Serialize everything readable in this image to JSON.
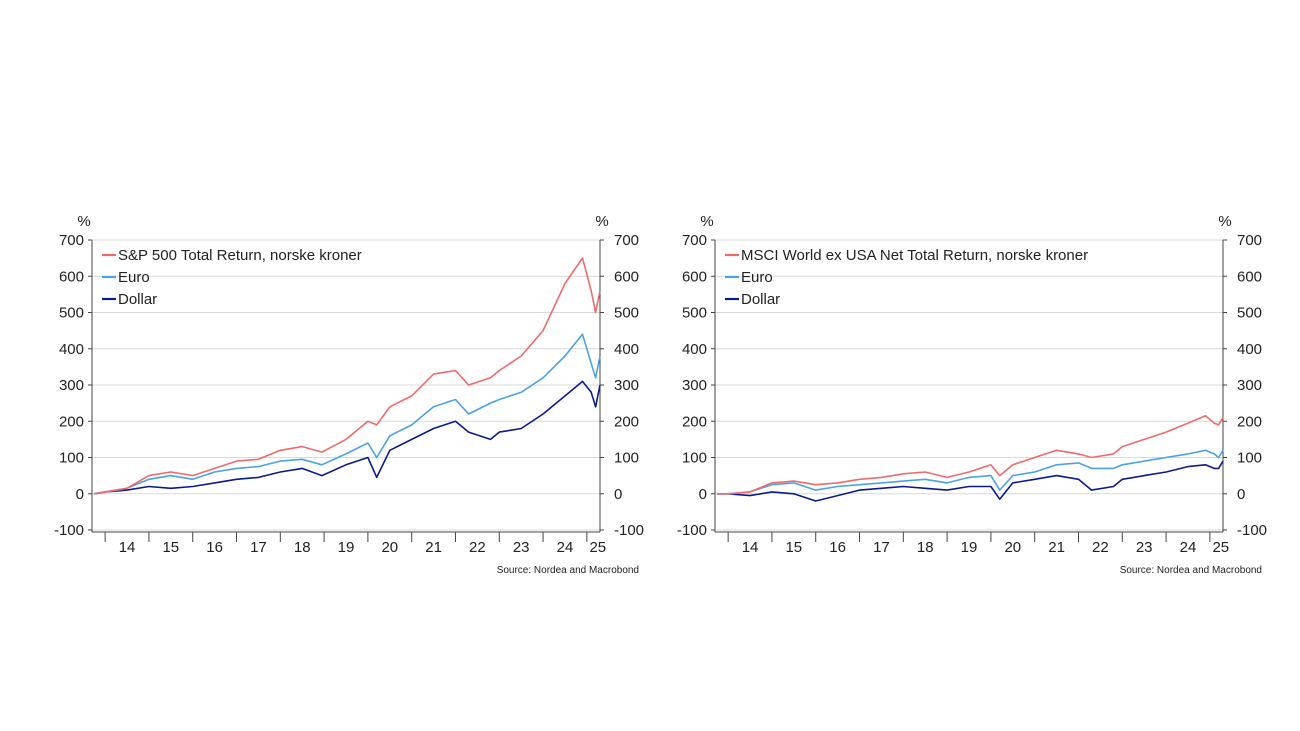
{
  "chart_data": [
    {
      "type": "line",
      "y_unit_label": "%",
      "ylim": [
        -100,
        700
      ],
      "yticks": [
        -100,
        0,
        100,
        200,
        300,
        400,
        500,
        600,
        700
      ],
      "x_tick_labels": [
        "14",
        "15",
        "16",
        "17",
        "18",
        "19",
        "20",
        "21",
        "22",
        "23",
        "24",
        "25"
      ],
      "xlim": [
        2013.7,
        2025.3
      ],
      "grid": true,
      "legend_position": "top-left",
      "source": "Source: Nordea and Macrobond",
      "series": [
        {
          "name": "S&P 500 Total Return, norske kroner",
          "color": "#EF6B6B",
          "x": [
            2013.75,
            2014.0,
            2014.5,
            2015.0,
            2015.5,
            2016.0,
            2016.5,
            2017.0,
            2017.5,
            2018.0,
            2018.5,
            2018.95,
            2019.5,
            2020.0,
            2020.2,
            2020.5,
            2021.0,
            2021.5,
            2022.0,
            2022.3,
            2022.8,
            2023.0,
            2023.5,
            2024.0,
            2024.5,
            2024.9,
            2025.1,
            2025.2,
            2025.3
          ],
          "values": [
            0,
            5,
            15,
            50,
            60,
            50,
            70,
            90,
            95,
            120,
            130,
            115,
            150,
            200,
            190,
            240,
            270,
            330,
            340,
            300,
            320,
            340,
            380,
            450,
            580,
            650,
            560,
            500,
            560
          ]
        },
        {
          "name": "Euro",
          "color": "#4AA2E6",
          "x": [
            2013.75,
            2014.0,
            2014.5,
            2015.0,
            2015.5,
            2016.0,
            2016.5,
            2017.0,
            2017.5,
            2018.0,
            2018.5,
            2018.95,
            2019.5,
            2020.0,
            2020.2,
            2020.5,
            2021.0,
            2021.5,
            2022.0,
            2022.3,
            2022.8,
            2023.0,
            2023.5,
            2024.0,
            2024.5,
            2024.9,
            2025.1,
            2025.2,
            2025.3
          ],
          "values": [
            0,
            5,
            15,
            40,
            50,
            40,
            60,
            70,
            75,
            90,
            95,
            80,
            110,
            140,
            100,
            160,
            190,
            240,
            260,
            220,
            250,
            260,
            280,
            320,
            380,
            440,
            360,
            320,
            380
          ]
        },
        {
          "name": "Dollar",
          "color": "#0A1B8F",
          "x": [
            2013.75,
            2014.0,
            2014.5,
            2015.0,
            2015.5,
            2016.0,
            2016.5,
            2017.0,
            2017.5,
            2018.0,
            2018.5,
            2018.95,
            2019.5,
            2020.0,
            2020.2,
            2020.5,
            2021.0,
            2021.5,
            2022.0,
            2022.3,
            2022.8,
            2023.0,
            2023.5,
            2024.0,
            2024.5,
            2024.9,
            2025.1,
            2025.2,
            2025.3
          ],
          "values": [
            0,
            5,
            10,
            20,
            15,
            20,
            30,
            40,
            45,
            60,
            70,
            50,
            80,
            100,
            45,
            120,
            150,
            180,
            200,
            170,
            150,
            170,
            180,
            220,
            270,
            310,
            280,
            240,
            300
          ]
        }
      ]
    },
    {
      "type": "line",
      "y_unit_label": "%",
      "ylim": [
        -100,
        700
      ],
      "yticks": [
        -100,
        0,
        100,
        200,
        300,
        400,
        500,
        600,
        700
      ],
      "x_tick_labels": [
        "14",
        "15",
        "16",
        "17",
        "18",
        "19",
        "20",
        "21",
        "22",
        "23",
        "24",
        "25"
      ],
      "xlim": [
        2013.7,
        2025.3
      ],
      "grid": true,
      "legend_position": "top-left",
      "source": "Source: Nordea and Macrobond",
      "series": [
        {
          "name": "MSCI World ex USA Net Total Return, norske kroner",
          "color": "#EF6B6B",
          "x": [
            2013.75,
            2014.0,
            2014.5,
            2015.0,
            2015.5,
            2016.0,
            2016.5,
            2017.0,
            2017.5,
            2018.0,
            2018.5,
            2019.0,
            2019.5,
            2020.0,
            2020.2,
            2020.5,
            2021.0,
            2021.5,
            2022.0,
            2022.3,
            2022.8,
            2023.0,
            2023.5,
            2024.0,
            2024.5,
            2024.9,
            2025.1,
            2025.2,
            2025.3
          ],
          "values": [
            0,
            0,
            5,
            30,
            35,
            25,
            30,
            40,
            45,
            55,
            60,
            45,
            60,
            80,
            50,
            80,
            100,
            120,
            110,
            100,
            110,
            130,
            150,
            170,
            195,
            215,
            195,
            190,
            210
          ]
        },
        {
          "name": "Euro",
          "color": "#4AA2E6",
          "x": [
            2013.75,
            2014.0,
            2014.5,
            2015.0,
            2015.5,
            2016.0,
            2016.5,
            2017.0,
            2017.5,
            2018.0,
            2018.5,
            2019.0,
            2019.5,
            2020.0,
            2020.2,
            2020.5,
            2021.0,
            2021.5,
            2022.0,
            2022.3,
            2022.8,
            2023.0,
            2023.5,
            2024.0,
            2024.5,
            2024.9,
            2025.1,
            2025.2,
            2025.3
          ],
          "values": [
            0,
            0,
            5,
            25,
            30,
            10,
            20,
            25,
            30,
            35,
            40,
            30,
            45,
            50,
            10,
            50,
            60,
            80,
            85,
            70,
            70,
            80,
            90,
            100,
            110,
            120,
            110,
            100,
            120
          ]
        },
        {
          "name": "Dollar",
          "color": "#0A1B8F",
          "x": [
            2013.75,
            2014.0,
            2014.5,
            2015.0,
            2015.5,
            2016.0,
            2016.5,
            2017.0,
            2017.5,
            2018.0,
            2018.5,
            2019.0,
            2019.5,
            2020.0,
            2020.2,
            2020.5,
            2021.0,
            2021.5,
            2022.0,
            2022.3,
            2022.8,
            2023.0,
            2023.5,
            2024.0,
            2024.5,
            2024.9,
            2025.1,
            2025.2,
            2025.3
          ],
          "values": [
            0,
            0,
            -5,
            5,
            0,
            -20,
            -5,
            10,
            15,
            20,
            15,
            10,
            20,
            20,
            -15,
            30,
            40,
            50,
            40,
            10,
            20,
            40,
            50,
            60,
            75,
            80,
            70,
            70,
            90
          ]
        }
      ]
    }
  ]
}
